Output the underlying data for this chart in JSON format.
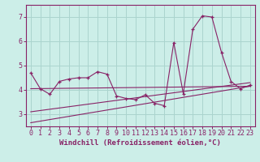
{
  "xlabel": "Windchill (Refroidissement éolien,°C)",
  "ylabel": "",
  "background_color": "#cceee8",
  "grid_color": "#aad4ce",
  "line_color": "#882266",
  "xlim": [
    -0.5,
    23.5
  ],
  "ylim": [
    2.5,
    7.5
  ],
  "xticks": [
    0,
    1,
    2,
    3,
    4,
    5,
    6,
    7,
    8,
    9,
    10,
    11,
    12,
    13,
    14,
    15,
    16,
    17,
    18,
    19,
    20,
    21,
    22,
    23
  ],
  "yticks": [
    3,
    4,
    5,
    6,
    7
  ],
  "scatter_x": [
    0,
    1,
    2,
    3,
    4,
    5,
    6,
    7,
    8,
    9,
    10,
    11,
    12,
    13,
    14,
    15,
    16,
    17,
    18,
    19,
    20,
    21,
    22,
    23
  ],
  "scatter_y": [
    4.7,
    4.05,
    3.82,
    4.35,
    4.45,
    4.5,
    4.5,
    4.75,
    4.65,
    3.75,
    3.65,
    3.6,
    3.8,
    3.45,
    3.35,
    5.95,
    3.85,
    6.5,
    7.05,
    7.0,
    5.55,
    4.35,
    4.05,
    4.2
  ],
  "line1_x": [
    0,
    23
  ],
  "line1_y": [
    4.05,
    4.15
  ],
  "line2_x": [
    0,
    23
  ],
  "line2_y": [
    2.65,
    4.15
  ],
  "line3_x": [
    0,
    23
  ],
  "line3_y": [
    3.1,
    4.3
  ],
  "font_size_xlabel": 6.5,
  "font_size_tick": 6
}
